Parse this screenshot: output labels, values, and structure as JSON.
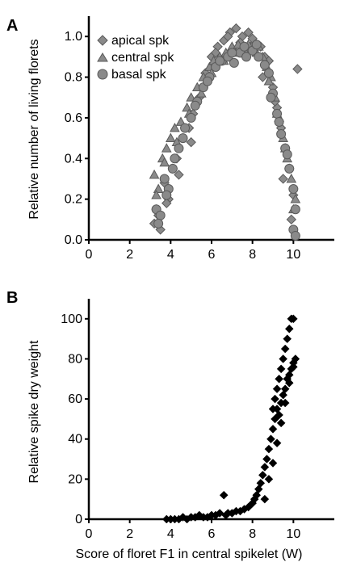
{
  "chart_data": [
    {
      "panel": "A",
      "type": "scatter",
      "title": "",
      "xlabel": "",
      "ylabel": "Relative number of living florets",
      "xlim": [
        0,
        12
      ],
      "ylim": [
        0,
        1.1
      ],
      "xticks": [
        "0",
        "2",
        "4",
        "6",
        "8",
        "10"
      ],
      "xtick_values": [
        0,
        2,
        4,
        6,
        8,
        10
      ],
      "yticks": [
        "0.0",
        "0.2",
        "0.4",
        "0.6",
        "0.8",
        "1.0"
      ],
      "ytick_values": [
        0,
        0.2,
        0.4,
        0.6,
        0.8,
        1.0
      ],
      "grid": false,
      "legend_position": "top-left",
      "series": [
        {
          "name": "apical spk",
          "marker": "diamond",
          "color": "#8a8a8a",
          "x": [
            3.2,
            3.3,
            3.5,
            3.7,
            3.9,
            4.1,
            4.3,
            4.6,
            4.9,
            5.1,
            5.4,
            5.7,
            6.0,
            6.3,
            6.6,
            6.9,
            7.2,
            7.5,
            7.8,
            8.1,
            8.4,
            8.6,
            8.8,
            9.0,
            9.2,
            9.4,
            9.6,
            9.8,
            10.0,
            10.2,
            3.4,
            3.8,
            4.4,
            5.0,
            5.6,
            6.2,
            6.8,
            7.4,
            8.0,
            8.5,
            9.1,
            9.5,
            9.9
          ],
          "y": [
            0.08,
            0.15,
            0.05,
            0.28,
            0.2,
            0.35,
            0.4,
            0.5,
            0.55,
            0.62,
            0.7,
            0.82,
            0.9,
            0.95,
            0.98,
            1.02,
            1.04,
            1.0,
            1.02,
            0.97,
            0.95,
            0.9,
            0.88,
            0.75,
            0.65,
            0.55,
            0.45,
            0.35,
            0.22,
            0.84,
            0.12,
            0.18,
            0.32,
            0.48,
            0.75,
            0.92,
            1.0,
            0.97,
            0.99,
            0.8,
            0.68,
            0.3,
            0.1
          ]
        },
        {
          "name": "central spk",
          "marker": "triangle",
          "color": "#8a8a8a",
          "x": [
            3.2,
            3.4,
            3.6,
            3.8,
            4.0,
            4.2,
            4.5,
            4.8,
            5.0,
            5.3,
            5.6,
            5.9,
            6.1,
            6.4,
            6.7,
            7.0,
            7.3,
            7.6,
            7.9,
            8.2,
            8.5,
            8.7,
            8.9,
            9.1,
            9.3,
            9.5,
            9.7,
            9.9,
            10.1,
            3.3,
            3.7,
            4.3,
            4.9,
            5.5,
            6.0,
            6.6,
            7.2,
            7.8,
            8.3,
            8.8,
            9.2,
            9.6,
            10.0
          ],
          "y": [
            0.32,
            0.25,
            0.4,
            0.45,
            0.5,
            0.55,
            0.58,
            0.65,
            0.7,
            0.75,
            0.8,
            0.85,
            0.88,
            0.9,
            0.92,
            0.95,
            0.96,
            0.94,
            0.93,
            0.92,
            0.9,
            0.85,
            0.8,
            0.7,
            0.6,
            0.5,
            0.4,
            0.3,
            0.2,
            0.22,
            0.38,
            0.48,
            0.62,
            0.72,
            0.82,
            0.88,
            0.92,
            0.96,
            0.95,
            0.78,
            0.62,
            0.45,
            0.15
          ]
        },
        {
          "name": "basal spk",
          "marker": "circle",
          "color": "#8a8a8a",
          "x": [
            3.3,
            3.5,
            3.7,
            3.9,
            4.1,
            4.4,
            4.7,
            5.0,
            5.3,
            5.6,
            5.9,
            6.2,
            6.5,
            6.8,
            7.1,
            7.4,
            7.7,
            8.0,
            8.3,
            8.6,
            8.8,
            9.0,
            9.2,
            9.4,
            9.6,
            9.8,
            10.0,
            10.1,
            3.4,
            3.8,
            4.2,
            4.6,
            5.2,
            5.8,
            6.4,
            7.0,
            7.6,
            8.2,
            8.9,
            9.3,
            9.7,
            10.0,
            10.1
          ],
          "y": [
            0.15,
            0.12,
            0.3,
            0.25,
            0.35,
            0.45,
            0.55,
            0.6,
            0.68,
            0.75,
            0.8,
            0.85,
            0.88,
            0.9,
            0.87,
            0.92,
            0.9,
            0.93,
            0.9,
            0.86,
            0.82,
            0.72,
            0.62,
            0.52,
            0.45,
            0.35,
            0.25,
            0.15,
            0.08,
            0.22,
            0.4,
            0.5,
            0.66,
            0.78,
            0.88,
            0.92,
            0.95,
            0.96,
            0.7,
            0.58,
            0.42,
            0.05,
            0.02
          ]
        }
      ]
    },
    {
      "panel": "B",
      "type": "scatter",
      "title": "",
      "xlabel": "Score of floret F1 in central spikelet (W)",
      "ylabel": "Relative spike dry weight",
      "xlim": [
        0,
        12
      ],
      "ylim": [
        0,
        110
      ],
      "xticks": [
        "0",
        "2",
        "4",
        "6",
        "8",
        "10"
      ],
      "xtick_values": [
        0,
        2,
        4,
        6,
        8,
        10
      ],
      "yticks": [
        "0",
        "20",
        "40",
        "60",
        "80",
        "100"
      ],
      "ytick_values": [
        0,
        20,
        40,
        60,
        80,
        100
      ],
      "grid": false,
      "series": [
        {
          "name": "",
          "marker": "diamond",
          "color": "#000000",
          "x": [
            3.8,
            4.0,
            4.2,
            4.4,
            4.6,
            4.8,
            5.0,
            5.2,
            5.4,
            5.6,
            5.8,
            6.0,
            6.2,
            6.4,
            6.6,
            6.7,
            6.8,
            7.0,
            7.2,
            7.4,
            7.6,
            7.8,
            8.0,
            8.1,
            8.2,
            8.3,
            8.4,
            8.5,
            8.6,
            8.7,
            8.8,
            8.9,
            9.0,
            9.0,
            9.1,
            9.1,
            9.2,
            9.2,
            9.3,
            9.3,
            9.4,
            9.4,
            9.5,
            9.5,
            9.6,
            9.6,
            9.7,
            9.7,
            9.8,
            9.8,
            9.9,
            9.9,
            10.0,
            10.0,
            10.1,
            8.6,
            8.8,
            9.0,
            9.2,
            9.4,
            9.6,
            9.8,
            10.0
          ],
          "y": [
            0,
            0,
            0,
            0,
            1,
            0,
            1,
            1,
            2,
            1,
            1,
            2,
            2,
            3,
            12,
            2,
            3,
            3,
            4,
            4,
            5,
            6,
            8,
            10,
            12,
            15,
            18,
            22,
            26,
            30,
            35,
            40,
            45,
            55,
            50,
            60,
            55,
            65,
            52,
            70,
            58,
            75,
            62,
            80,
            65,
            85,
            70,
            90,
            72,
            95,
            75,
            100,
            78,
            100,
            80,
            10,
            20,
            28,
            38,
            48,
            58,
            68,
            76
          ]
        }
      ]
    }
  ],
  "panel_letters": [
    "A",
    "B"
  ]
}
